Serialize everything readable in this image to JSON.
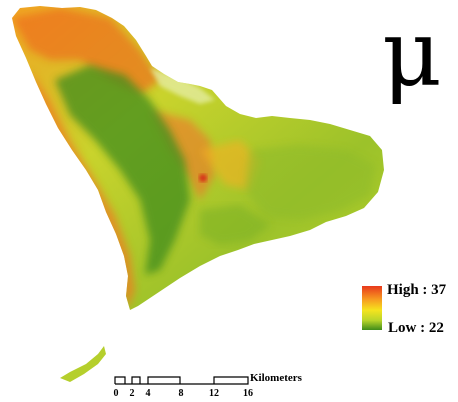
{
  "map": {
    "symbol": "μ",
    "legend": {
      "high_label": "High : 37",
      "low_label": "Low : 22",
      "high_color": "#e8391c",
      "mid_color": "#f5e41e",
      "low_color": "#3f8c1a"
    },
    "scale_bar": {
      "unit": "Kilometers",
      "ticks": [
        "0",
        "2",
        "4",
        "8",
        "12",
        "16"
      ]
    }
  }
}
